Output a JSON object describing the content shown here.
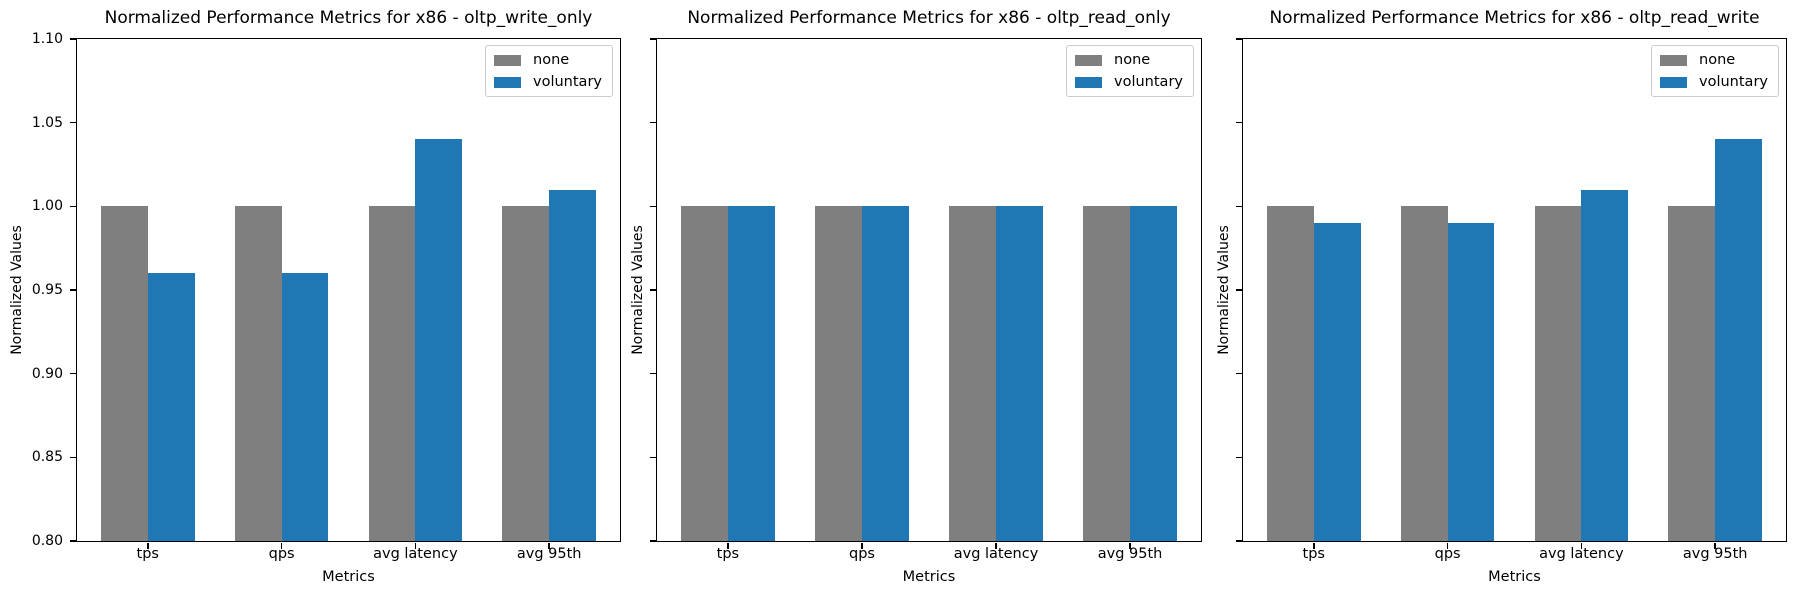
{
  "figure": {
    "background": "#ffffff",
    "text_color": "#000000",
    "series_colors": {
      "none": "#7f7f7f",
      "voluntary": "#1f77b4"
    }
  },
  "chart_data": [
    {
      "type": "bar",
      "title": "Normalized Performance Metrics for x86 - oltp_write_only",
      "xlabel": "Metrics",
      "ylabel": "Normalized Values",
      "categories": [
        "tps",
        "qps",
        "avg latency",
        "avg 95th"
      ],
      "series": [
        {
          "name": "none",
          "color": "#7f7f7f",
          "values": [
            1.0,
            1.0,
            1.0,
            1.0
          ]
        },
        {
          "name": "voluntary",
          "color": "#1f77b4",
          "values": [
            0.96,
            0.96,
            1.04,
            1.01
          ]
        }
      ],
      "ylim": [
        0.8,
        1.1
      ],
      "yticks": [
        0.8,
        0.85,
        0.9,
        0.95,
        1.0,
        1.05,
        1.1
      ],
      "ytick_labels": [
        "0.80",
        "0.85",
        "0.90",
        "0.95",
        "1.00",
        "1.05",
        "1.10"
      ],
      "ytick_labels_visible": true,
      "bar_width_units": 0.35,
      "grid": false,
      "legend": {
        "position": "upper right",
        "entries": [
          "none",
          "voluntary"
        ]
      }
    },
    {
      "type": "bar",
      "title": "Normalized Performance Metrics for x86 - oltp_read_only",
      "xlabel": "Metrics",
      "ylabel": "Normalized Values",
      "categories": [
        "tps",
        "qps",
        "avg latency",
        "avg 95th"
      ],
      "series": [
        {
          "name": "none",
          "color": "#7f7f7f",
          "values": [
            1.0,
            1.0,
            1.0,
            1.0
          ]
        },
        {
          "name": "voluntary",
          "color": "#1f77b4",
          "values": [
            1.0,
            1.0,
            1.0,
            1.0
          ]
        }
      ],
      "ylim": [
        0.8,
        1.1
      ],
      "yticks": [
        0.8,
        0.85,
        0.9,
        0.95,
        1.0,
        1.05,
        1.1
      ],
      "ytick_labels": [
        "0.80",
        "0.85",
        "0.90",
        "0.95",
        "1.00",
        "1.05",
        "1.10"
      ],
      "ytick_labels_visible": false,
      "bar_width_units": 0.35,
      "grid": false,
      "legend": {
        "position": "upper right",
        "entries": [
          "none",
          "voluntary"
        ]
      }
    },
    {
      "type": "bar",
      "title": "Normalized Performance Metrics for x86 - oltp_read_write",
      "xlabel": "Metrics",
      "ylabel": "Normalized Values",
      "categories": [
        "tps",
        "qps",
        "avg latency",
        "avg 95th"
      ],
      "series": [
        {
          "name": "none",
          "color": "#7f7f7f",
          "values": [
            1.0,
            1.0,
            1.0,
            1.0
          ]
        },
        {
          "name": "voluntary",
          "color": "#1f77b4",
          "values": [
            0.99,
            0.99,
            1.01,
            1.04
          ]
        }
      ],
      "ylim": [
        0.8,
        1.1
      ],
      "yticks": [
        0.8,
        0.85,
        0.9,
        0.95,
        1.0,
        1.05,
        1.1
      ],
      "ytick_labels": [
        "0.80",
        "0.85",
        "0.90",
        "0.95",
        "1.00",
        "1.05",
        "1.10"
      ],
      "ytick_labels_visible": false,
      "bar_width_units": 0.35,
      "grid": false,
      "legend": {
        "position": "upper right",
        "entries": [
          "none",
          "voluntary"
        ]
      }
    }
  ]
}
